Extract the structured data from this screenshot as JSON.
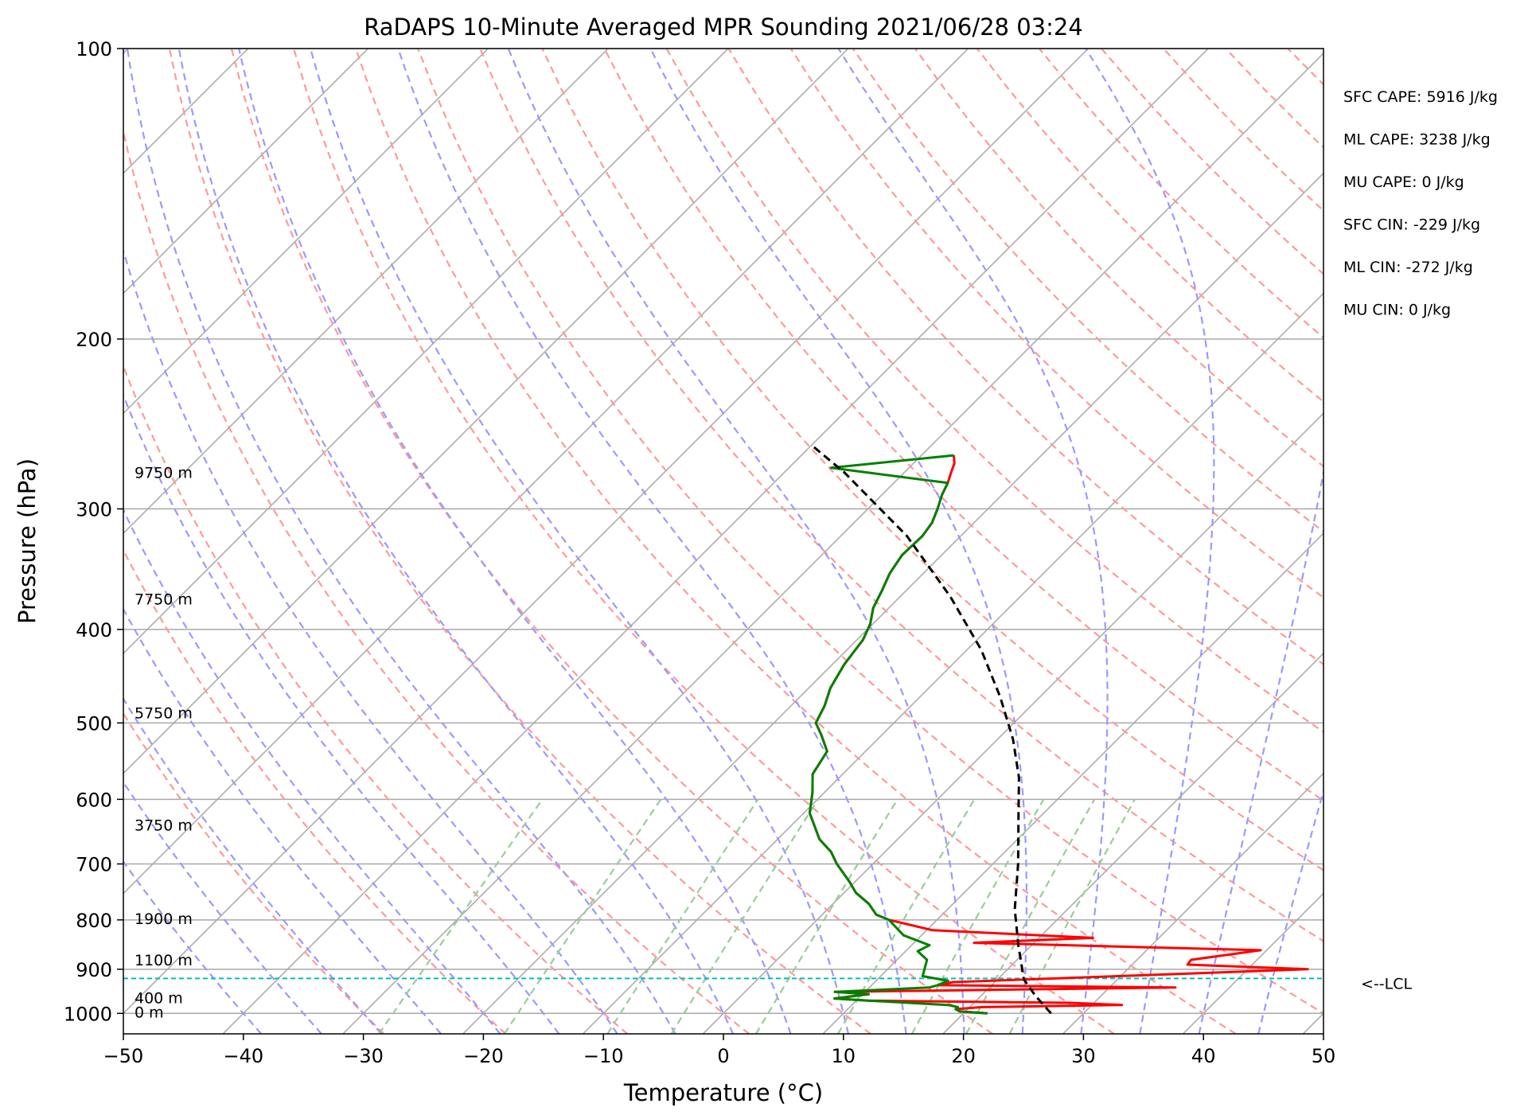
{
  "chart_data": {
    "type": "skew-t",
    "title": "RaDAPS 10-Minute Averaged MPR Sounding 2021/06/28 03:24",
    "xlabel": "Temperature (°C)",
    "ylabel": "Pressure (hPa)",
    "xlim": [
      -50,
      50
    ],
    "ylim": [
      1050,
      100
    ],
    "y_scale": "log",
    "x_ticks": [
      "−50",
      "−40",
      "−30",
      "−20",
      "−10",
      "0",
      "10",
      "20",
      "30",
      "40",
      "50"
    ],
    "x_tick_values": [
      -50,
      -40,
      -30,
      -20,
      -10,
      0,
      10,
      20,
      30,
      40,
      50
    ],
    "y_ticks": [
      "100",
      "200",
      "300",
      "400",
      "500",
      "600",
      "700",
      "800",
      "900",
      "1000"
    ],
    "y_tick_values": [
      100,
      200,
      300,
      400,
      500,
      600,
      700,
      800,
      900,
      1000
    ],
    "height_labels": [
      {
        "text": "9750 m",
        "p": 275
      },
      {
        "text": "7750 m",
        "p": 372
      },
      {
        "text": "5750 m",
        "p": 488
      },
      {
        "text": "3750 m",
        "p": 638
      },
      {
        "text": "1900 m",
        "p": 797
      },
      {
        "text": "1100 m",
        "p": 880
      },
      {
        "text": "400 m",
        "p": 963
      },
      {
        "text": "0 m",
        "p": 997
      }
    ],
    "stats": [
      "SFC CAPE: 5916 J/kg",
      "ML CAPE: 3238 J/kg",
      "MU CAPE: 0 J/kg",
      "SFC CIN: -229 J/kg",
      "ML CIN: -272 J/kg",
      "MU CIN: 0 J/kg"
    ],
    "lcl": {
      "label": "<--LCL",
      "p": 920
    },
    "colors": {
      "temperature": "#ff0000",
      "dewpoint": "#008000",
      "parcel": "#000000",
      "lcl": "#00bfbf",
      "dry_adiabats": "#ff9999",
      "moist_adiabats": "#9999ff",
      "mixing_ratio": "#99cc99",
      "grid": "#a8a8a8"
    },
    "series": [
      {
        "name": "",
        "role": "temperature",
        "points": [
          [
            22.0,
            1000
          ],
          [
            19.5,
            995
          ],
          [
            19.0,
            990
          ],
          [
            21.0,
            985
          ],
          [
            32.5,
            980
          ],
          [
            28.0,
            975
          ],
          [
            11.0,
            970
          ],
          [
            8.0,
            965
          ],
          [
            10.5,
            955
          ],
          [
            7.5,
            950
          ],
          [
            35.5,
            940
          ],
          [
            15.5,
            935
          ],
          [
            16.5,
            928
          ],
          [
            45.0,
            900
          ],
          [
            34.6,
            890
          ],
          [
            34.5,
            880
          ],
          [
            39.5,
            860
          ],
          [
            15.0,
            845
          ],
          [
            24.5,
            835
          ],
          [
            10.5,
            820
          ],
          [
            6.0,
            800
          ],
          [
            4.5,
            790
          ],
          [
            3.0,
            770
          ],
          [
            1.0,
            750
          ],
          [
            -0.5,
            730
          ],
          [
            -3.0,
            700
          ],
          [
            -4.5,
            680
          ],
          [
            -6.5,
            660
          ],
          [
            -9.5,
            620
          ],
          [
            -11.0,
            590
          ],
          [
            -12.5,
            565
          ],
          [
            -13.2,
            535
          ],
          [
            -15.0,
            515
          ],
          [
            -16.5,
            500
          ],
          [
            -17.2,
            480
          ],
          [
            -18.2,
            460
          ],
          [
            -19.0,
            435
          ],
          [
            -19.5,
            410
          ],
          [
            -20.2,
            395
          ],
          [
            -21.3,
            380
          ],
          [
            -22.0,
            365
          ],
          [
            -22.8,
            350
          ],
          [
            -23.3,
            335
          ],
          [
            -23.2,
            320
          ],
          [
            -23.5,
            310
          ],
          [
            -24.2,
            300
          ],
          [
            -25.0,
            290
          ],
          [
            -25.5,
            282
          ],
          [
            -26.1,
            275
          ],
          [
            -26.6,
            269
          ],
          [
            -27.3,
            264
          ]
        ]
      },
      {
        "name": "",
        "role": "dewpoint",
        "points": [
          [
            22.0,
            1000
          ],
          [
            19.5,
            995
          ],
          [
            19.0,
            990
          ],
          [
            19.0,
            985
          ],
          [
            18.0,
            980
          ],
          [
            11.0,
            970
          ],
          [
            8.0,
            965
          ],
          [
            10.5,
            955
          ],
          [
            7.5,
            950
          ],
          [
            15.0,
            940
          ],
          [
            15.5,
            935
          ],
          [
            16.0,
            925
          ],
          [
            13.5,
            915
          ],
          [
            12.5,
            880
          ],
          [
            11.0,
            862
          ],
          [
            11.5,
            850
          ],
          [
            8.5,
            830
          ],
          [
            6.0,
            800
          ],
          [
            4.5,
            790
          ],
          [
            3.0,
            770
          ],
          [
            1.0,
            750
          ],
          [
            -0.5,
            730
          ],
          [
            -3.0,
            700
          ],
          [
            -4.5,
            680
          ],
          [
            -6.5,
            660
          ],
          [
            -9.5,
            620
          ],
          [
            -11.0,
            590
          ],
          [
            -12.5,
            565
          ],
          [
            -13.2,
            535
          ],
          [
            -15.0,
            515
          ],
          [
            -16.5,
            500
          ],
          [
            -17.2,
            480
          ],
          [
            -18.2,
            460
          ],
          [
            -19.0,
            435
          ],
          [
            -19.5,
            410
          ],
          [
            -20.2,
            395
          ],
          [
            -21.3,
            380
          ],
          [
            -22.0,
            365
          ],
          [
            -22.8,
            350
          ],
          [
            -23.3,
            335
          ],
          [
            -23.2,
            320
          ],
          [
            -23.5,
            310
          ],
          [
            -24.2,
            300
          ],
          [
            -25.0,
            290
          ],
          [
            -25.5,
            282
          ],
          [
            -36.5,
            272
          ],
          [
            -27.3,
            264
          ]
        ]
      },
      {
        "name": "",
        "role": "parcel",
        "points": [
          [
            27.3,
            1000
          ],
          [
            24.6,
            960
          ],
          [
            22.2,
            922
          ],
          [
            18.9,
            850
          ],
          [
            15.6,
            780
          ],
          [
            12.1,
            700
          ],
          [
            7.9,
            620
          ],
          [
            5.0,
            570
          ],
          [
            1.3,
            520
          ],
          [
            -3.3,
            470
          ],
          [
            -8.8,
            420
          ],
          [
            -15.8,
            370
          ],
          [
            -24.5,
            320
          ],
          [
            -35.0,
            275
          ],
          [
            -39.9,
            258
          ]
        ]
      }
    ]
  }
}
